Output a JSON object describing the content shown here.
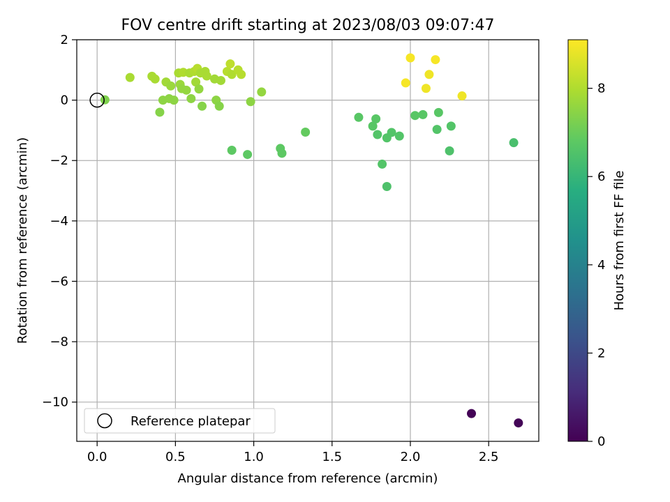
{
  "chart_data": {
    "type": "scatter",
    "title": "FOV centre drift starting at 2023/08/03 09:07:47",
    "xlabel": "Angular distance from reference (arcmin)",
    "ylabel": "Rotation from reference (arcmin)",
    "xlim": [
      -0.13,
      2.82
    ],
    "ylim": [
      -11.3,
      2.0
    ],
    "xticks": [
      0.0,
      0.5,
      1.0,
      1.5,
      2.0,
      2.5
    ],
    "xtick_labels": [
      "0.0",
      "0.5",
      "1.0",
      "1.5",
      "2.0",
      "2.5"
    ],
    "yticks": [
      2,
      0,
      -2,
      -4,
      -6,
      -8,
      -10
    ],
    "ytick_labels": [
      "2",
      "0",
      "−2",
      "−4",
      "−6",
      "−8",
      "−10"
    ],
    "grid": true,
    "legend": {
      "placement": "lower-left",
      "entries": [
        "Reference platepar"
      ]
    },
    "reference_point": {
      "x": 0.0,
      "y": 0.0
    },
    "colorbar": {
      "label": "Hours from first FF file",
      "colormap": "viridis",
      "range": [
        0,
        9.1
      ],
      "ticks": [
        0,
        2,
        4,
        6,
        8
      ],
      "tick_labels": [
        "0",
        "2",
        "4",
        "6",
        "8"
      ]
    },
    "points": [
      {
        "x": 2.39,
        "y": -10.38,
        "hours": 0.05
      },
      {
        "x": 2.69,
        "y": -10.69,
        "hours": 0.1
      },
      {
        "x": 1.67,
        "y": -0.57,
        "hours": 6.7
      },
      {
        "x": 1.76,
        "y": -0.86,
        "hours": 6.7
      },
      {
        "x": 1.78,
        "y": -0.62,
        "hours": 6.7
      },
      {
        "x": 1.79,
        "y": -1.14,
        "hours": 6.6
      },
      {
        "x": 1.82,
        "y": -2.12,
        "hours": 6.6
      },
      {
        "x": 1.85,
        "y": -1.25,
        "hours": 6.6
      },
      {
        "x": 1.85,
        "y": -2.86,
        "hours": 6.5
      },
      {
        "x": 1.88,
        "y": -1.07,
        "hours": 6.6
      },
      {
        "x": 1.93,
        "y": -1.19,
        "hours": 6.6
      },
      {
        "x": 2.03,
        "y": -0.51,
        "hours": 6.7
      },
      {
        "x": 2.08,
        "y": -0.48,
        "hours": 6.7
      },
      {
        "x": 2.17,
        "y": -0.97,
        "hours": 6.6
      },
      {
        "x": 2.18,
        "y": -0.41,
        "hours": 6.7
      },
      {
        "x": 2.25,
        "y": -1.68,
        "hours": 6.5
      },
      {
        "x": 2.26,
        "y": -0.86,
        "hours": 6.6
      },
      {
        "x": 2.66,
        "y": -1.41,
        "hours": 6.4
      },
      {
        "x": 0.86,
        "y": -1.66,
        "hours": 6.8
      },
      {
        "x": 0.96,
        "y": -1.8,
        "hours": 6.8
      },
      {
        "x": 1.17,
        "y": -1.6,
        "hours": 6.8
      },
      {
        "x": 1.18,
        "y": -1.76,
        "hours": 6.8
      },
      {
        "x": 1.33,
        "y": -1.06,
        "hours": 6.9
      },
      {
        "x": 0.05,
        "y": 0.01,
        "hours": 7.3
      },
      {
        "x": 0.21,
        "y": 0.75,
        "hours": 7.9
      },
      {
        "x": 0.35,
        "y": 0.79,
        "hours": 7.9
      },
      {
        "x": 0.37,
        "y": 0.7,
        "hours": 7.9
      },
      {
        "x": 0.4,
        "y": -0.4,
        "hours": 7.4
      },
      {
        "x": 0.42,
        "y": 0.0,
        "hours": 7.5
      },
      {
        "x": 0.44,
        "y": 0.6,
        "hours": 7.8
      },
      {
        "x": 0.46,
        "y": 0.05,
        "hours": 7.5
      },
      {
        "x": 0.47,
        "y": 0.47,
        "hours": 7.7
      },
      {
        "x": 0.49,
        "y": 0.0,
        "hours": 7.5
      },
      {
        "x": 0.52,
        "y": 0.9,
        "hours": 7.9
      },
      {
        "x": 0.53,
        "y": 0.52,
        "hours": 7.7
      },
      {
        "x": 0.54,
        "y": 0.38,
        "hours": 7.6
      },
      {
        "x": 0.55,
        "y": 0.92,
        "hours": 8.0
      },
      {
        "x": 0.57,
        "y": 0.33,
        "hours": 7.6
      },
      {
        "x": 0.59,
        "y": 0.9,
        "hours": 7.9
      },
      {
        "x": 0.6,
        "y": 0.05,
        "hours": 7.5
      },
      {
        "x": 0.62,
        "y": 0.95,
        "hours": 8.0
      },
      {
        "x": 0.63,
        "y": 0.6,
        "hours": 7.8
      },
      {
        "x": 0.64,
        "y": 1.05,
        "hours": 8.1
      },
      {
        "x": 0.65,
        "y": 0.37,
        "hours": 7.6
      },
      {
        "x": 0.66,
        "y": 0.9,
        "hours": 7.9
      },
      {
        "x": 0.67,
        "y": -0.2,
        "hours": 7.4
      },
      {
        "x": 0.69,
        "y": 0.95,
        "hours": 7.9
      },
      {
        "x": 0.7,
        "y": 0.8,
        "hours": 7.9
      },
      {
        "x": 0.75,
        "y": 0.7,
        "hours": 7.8
      },
      {
        "x": 0.76,
        "y": 0.0,
        "hours": 7.5
      },
      {
        "x": 0.78,
        "y": -0.2,
        "hours": 7.4
      },
      {
        "x": 0.79,
        "y": 0.65,
        "hours": 7.8
      },
      {
        "x": 0.83,
        "y": 0.95,
        "hours": 8.1
      },
      {
        "x": 0.85,
        "y": 1.2,
        "hours": 8.2
      },
      {
        "x": 0.86,
        "y": 0.85,
        "hours": 8.0
      },
      {
        "x": 0.9,
        "y": 1.0,
        "hours": 8.1
      },
      {
        "x": 0.92,
        "y": 0.85,
        "hours": 8.1
      },
      {
        "x": 0.98,
        "y": -0.05,
        "hours": 7.5
      },
      {
        "x": 1.05,
        "y": 0.27,
        "hours": 7.6
      },
      {
        "x": 1.97,
        "y": 0.57,
        "hours": 9.0
      },
      {
        "x": 2.0,
        "y": 1.4,
        "hours": 9.0
      },
      {
        "x": 2.1,
        "y": 0.39,
        "hours": 8.9
      },
      {
        "x": 2.12,
        "y": 0.85,
        "hours": 8.9
      },
      {
        "x": 2.16,
        "y": 1.34,
        "hours": 9.0
      },
      {
        "x": 2.33,
        "y": 0.14,
        "hours": 8.9
      }
    ]
  }
}
